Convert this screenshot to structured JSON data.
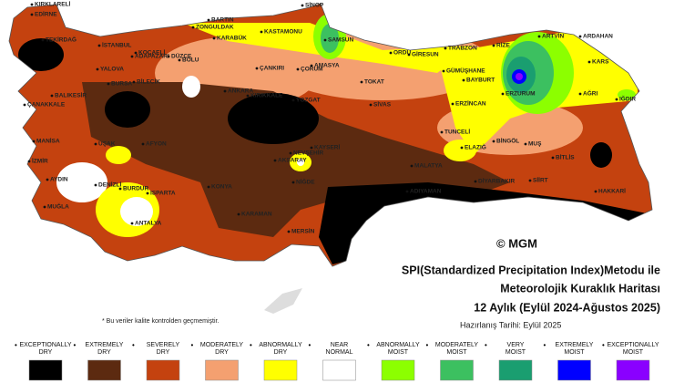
{
  "map": {
    "title_lines": [
      "SPI(Standardized Precipitation Index)Metodu ile",
      "Meteorolojik Kuraklık Haritası",
      "12 Aylık (Eylül 2024-Ağustos 2025)"
    ],
    "prepared": "Hazırlanış Tarihi: Eylül 2025",
    "copyright": "© MGM",
    "note": "* Bu veriler kalite kontrolden geçmemiştir.",
    "cities": [
      "KIRKLARELİ",
      "EDİRNE",
      "İSTANBUL",
      "TEKİRDAĞ",
      "KOCAELİ",
      "ADAPAZARI",
      "DÜZCE",
      "BOLU",
      "ZONGULDAK",
      "BARTIN",
      "KARABÜK",
      "KASTAMONU",
      "SİNOP",
      "SAMSUN",
      "ÇORUM",
      "AMASYA",
      "ORDU",
      "GİRESUN",
      "TRABZON",
      "RİZE",
      "ARTVİN",
      "ARDAHAN",
      "KARS",
      "GÜMÜŞHANE",
      "BAYBURT",
      "ERZURUM",
      "AĞRI",
      "IĞDIR",
      "ERZİNCAN",
      "TOKAT",
      "SİVAS",
      "YOZGAT",
      "ÇANKIRI",
      "KIRIKKALE",
      "ANKARA",
      "BİLECİK",
      "BURSA",
      "YALOVA",
      "BALIKESİR",
      "ÇANAKKALE",
      "MANİSA",
      "İZMİR",
      "AYDIN",
      "MUĞLA",
      "DENİZLİ",
      "UŞAK",
      "AFYON",
      "BURDUR",
      "ISPARTA",
      "ANTALYA",
      "KONYA",
      "KARAMAN",
      "MERSİN",
      "NİĞDE",
      "AKSARAY",
      "NEVŞEHİR",
      "KAYSERİ",
      "MALATYA",
      "ELAZIĞ",
      "TUNCELİ",
      "BİNGÖL",
      "MUŞ",
      "BİTLİS",
      "HAKKARİ",
      "SİİRT",
      "DİYARBAKIR",
      "ADIYAMAN"
    ],
    "legend": [
      {
        "label": [
          "EXCEPTIONALLY",
          "DRY"
        ],
        "color": "#000000"
      },
      {
        "label": [
          "EXTREMELY",
          "DRY"
        ],
        "color": "#5c2a10"
      },
      {
        "label": [
          "SEVERELY",
          "DRY"
        ],
        "color": "#c4420f"
      },
      {
        "label": [
          "MODERATELY",
          "DRY"
        ],
        "color": "#f4a070"
      },
      {
        "label": [
          "ABNORMALLY",
          "DRY"
        ],
        "color": "#ffff00"
      },
      {
        "label": [
          "NEAR",
          "NORMAL"
        ],
        "color": "#ffffff"
      },
      {
        "label": [
          "ABNORMALLY",
          "MOIST"
        ],
        "color": "#8cff00"
      },
      {
        "label": [
          "MODERATELY",
          "MOIST"
        ],
        "color": "#3cc060"
      },
      {
        "label": [
          "VERY",
          "MOIST"
        ],
        "color": "#1a9e70"
      },
      {
        "label": [
          "EXTREMELY",
          "MOIST"
        ],
        "color": "#0000ff"
      },
      {
        "label": [
          "EXCEPTIONALLY",
          "MOIST"
        ],
        "color": "#8a00ff"
      }
    ]
  }
}
